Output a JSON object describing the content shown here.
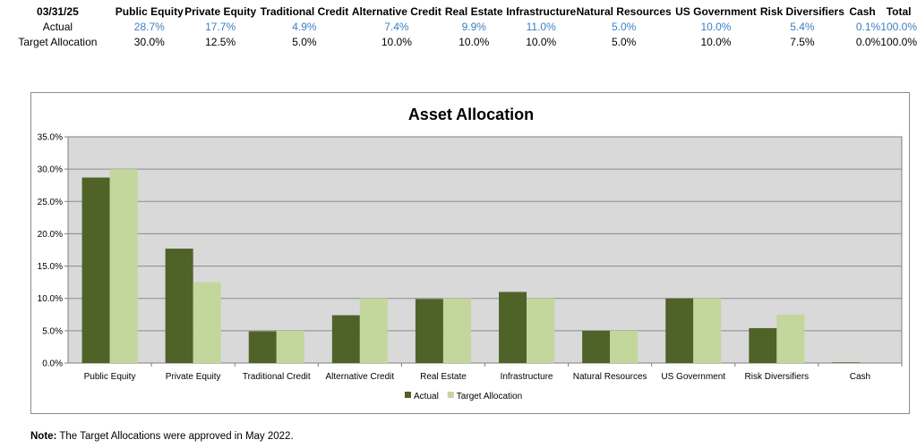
{
  "table": {
    "date": "03/31/25",
    "columns": [
      "Public Equity",
      "Private Equity",
      "Traditional Credit",
      "Alternative Credit",
      "Real Estate",
      "Infrastructure",
      "Natural Resources",
      "US Government",
      "Risk Diversifiers",
      "Cash",
      "Total"
    ],
    "rows": [
      {
        "label": "Actual",
        "values": [
          "28.7%",
          "17.7%",
          "4.9%",
          "7.4%",
          "9.9%",
          "11.0%",
          "5.0%",
          "10.0%",
          "5.4%",
          "0.1%",
          "100.0%"
        ]
      },
      {
        "label": "Target Allocation",
        "values": [
          "30.0%",
          "12.5%",
          "5.0%",
          "10.0%",
          "10.0%",
          "10.0%",
          "5.0%",
          "10.0%",
          "7.5%",
          "0.0%",
          "100.0%"
        ]
      }
    ]
  },
  "chart_data": {
    "type": "bar",
    "title": "Asset Allocation",
    "categories": [
      "Public Equity",
      "Private Equity",
      "Traditional Credit",
      "Alternative Credit",
      "Real Estate",
      "Infrastructure",
      "Natural Resources",
      "US Government",
      "Risk Diversifiers",
      "Cash"
    ],
    "series": [
      {
        "name": "Actual",
        "values": [
          28.7,
          17.7,
          4.9,
          7.4,
          9.9,
          11.0,
          5.0,
          10.0,
          5.4,
          0.1
        ],
        "color": "#4f6228"
      },
      {
        "name": "Target Allocation",
        "values": [
          30.0,
          12.5,
          5.0,
          10.0,
          10.0,
          10.0,
          5.0,
          10.0,
          7.5,
          0.0
        ],
        "color": "#c3d69b"
      }
    ],
    "ylim": [
      0,
      35
    ],
    "yticks": [
      "0.0%",
      "5.0%",
      "10.0%",
      "15.0%",
      "20.0%",
      "25.0%",
      "30.0%",
      "35.0%"
    ],
    "grid": true,
    "legend_position": "bottom",
    "plot_background": "#d9d9d9"
  },
  "note": {
    "label": "Note:",
    "text": "The Target Allocations were approved in May 2022."
  }
}
